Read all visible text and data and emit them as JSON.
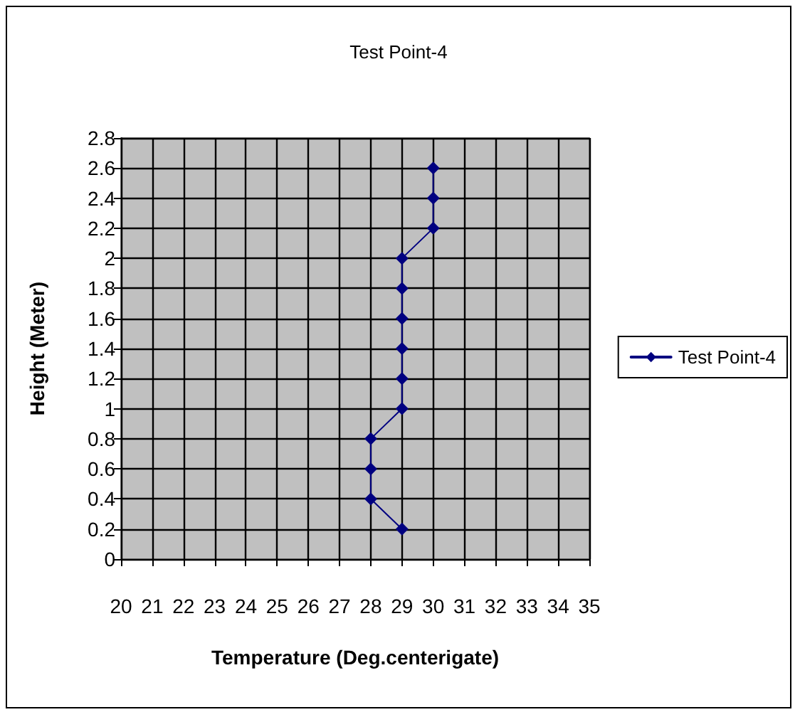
{
  "chart_data": {
    "type": "line",
    "title": "Test Point-4",
    "xlabel": "Temperature (Deg.centerigate)",
    "ylabel": "Height (Meter)",
    "x": [
      29,
      28,
      28,
      28,
      29,
      29,
      29,
      29,
      29,
      29,
      30,
      30,
      30
    ],
    "series": [
      {
        "name": "Test Point-4",
        "color": "#000080",
        "values": [
          0.2,
          0.4,
          0.6,
          0.8,
          1.0,
          1.2,
          1.4,
          1.6,
          1.8,
          2.0,
          2.2,
          2.4,
          2.6
        ]
      }
    ],
    "xlim": [
      20,
      35
    ],
    "xticks": [
      20,
      21,
      22,
      23,
      24,
      25,
      26,
      27,
      28,
      29,
      30,
      31,
      32,
      33,
      34,
      35
    ],
    "ylim": [
      0,
      2.8
    ],
    "yticks": [
      0,
      0.2,
      0.4,
      0.6,
      0.8,
      1,
      1.2,
      1.4,
      1.6,
      1.8,
      2,
      2.2,
      2.4,
      2.6,
      2.8
    ],
    "grid": true,
    "legend": "right",
    "marker": "diamond",
    "line_style": "solid"
  }
}
